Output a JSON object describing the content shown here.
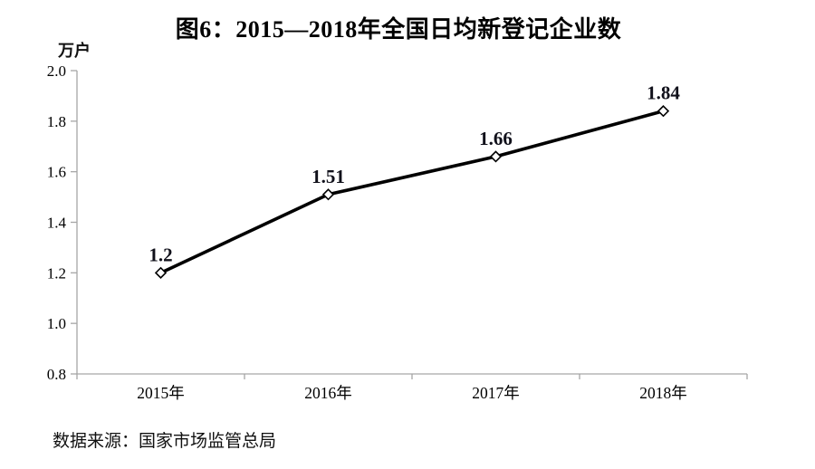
{
  "page": {
    "title": "图6：2015—2018年全国日均新登记企业数",
    "unit_label": "万户",
    "source": "数据来源：国家市场监管总局"
  },
  "colors": {
    "background": "#ffffff",
    "axis": "#a6a6a6",
    "line": "#000000",
    "marker_fill": "#ffffff",
    "marker_stroke": "#000000",
    "tick_text": "#000000",
    "data_label": "#10101a"
  },
  "chart_data": {
    "type": "line",
    "title": "图6：2015—2018年全国日均新登记企业数",
    "ylabel": "万户",
    "categories": [
      "2015年",
      "2016年",
      "2017年",
      "2018年"
    ],
    "values": [
      1.2,
      1.51,
      1.66,
      1.84
    ],
    "data_labels": [
      "1.2",
      "1.51",
      "1.66",
      "1.84"
    ],
    "ylim": [
      0.8,
      2.0
    ],
    "ytick_step": 0.2,
    "yticks": [
      "2.0",
      "1.8",
      "1.6",
      "1.4",
      "1.2",
      "1.0",
      "0.8"
    ],
    "grid": false,
    "legend": "none",
    "marker": "diamond",
    "source": "数据来源：国家市场监管总局"
  }
}
